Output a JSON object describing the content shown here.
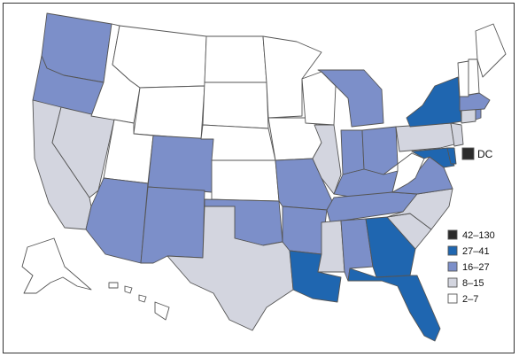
{
  "colors": {
    "c42_130": "#2b2b2b",
    "c27_41": "#1f66b0",
    "c16_27": "#7c8fc9",
    "c8_15": "#d3d5df",
    "c2_7": "#ffffff"
  },
  "legend": [
    {
      "label": "42–130",
      "class": "c42_130"
    },
    {
      "label": "27–41",
      "class": "c27_41"
    },
    {
      "label": "16–27",
      "class": "c16_27"
    },
    {
      "label": "8–15",
      "class": "c8_15"
    },
    {
      "label": "2–7",
      "class": "c2_7"
    }
  ],
  "dc_label": "DC",
  "state_class": {
    "WA": "c16_27",
    "OR": "c16_27",
    "CA": "c8_15",
    "NV": "c8_15",
    "ID": "c2_7",
    "MT": "c2_7",
    "WY": "c2_7",
    "UT": "c2_7",
    "AZ": "c16_27",
    "CO": "c16_27",
    "NM": "c16_27",
    "ND": "c2_7",
    "SD": "c2_7",
    "NE": "c2_7",
    "KS": "c2_7",
    "OK": "c16_27",
    "TX": "c8_15",
    "MN": "c2_7",
    "IA": "c2_7",
    "MO": "c16_27",
    "AR": "c16_27",
    "LA": "c27_41",
    "WI": "c2_7",
    "IL": "c8_15",
    "MI": "c16_27",
    "IN": "c16_27",
    "OH": "c16_27",
    "KY": "c16_27",
    "TN": "c16_27",
    "MS": "c8_15",
    "AL": "c16_27",
    "GA": "c27_41",
    "FL": "c27_41",
    "SC": "c8_15",
    "NC": "c8_15",
    "VA": "c16_27",
    "WV": "c2_7",
    "PA": "c8_15",
    "NY": "c27_41",
    "ME": "c2_7",
    "NH": "c2_7",
    "VT": "c2_7",
    "MA": "c16_27",
    "CT": "c8_15",
    "RI": "c16_27",
    "NJ": "c8_15",
    "DE": "c27_41",
    "MD": "c27_41",
    "AK": "c2_7",
    "HI": "c2_7",
    "DC": "c42_130"
  }
}
